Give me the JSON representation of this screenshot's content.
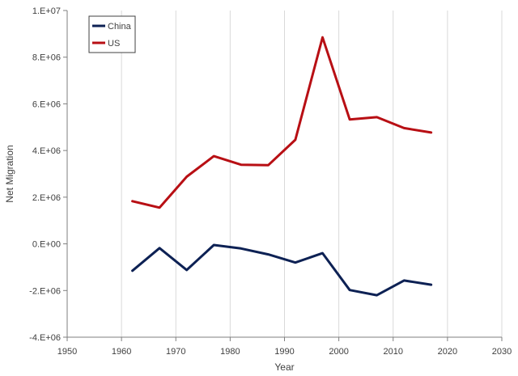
{
  "chart_data": {
    "type": "line",
    "title": "",
    "xlabel": "Year",
    "ylabel": "Net Migration",
    "xlim": [
      1950,
      2030
    ],
    "ylim": [
      -4000000,
      10000000
    ],
    "x_ticks": [
      1950,
      1960,
      1970,
      1980,
      1990,
      2000,
      2010,
      2020,
      2030
    ],
    "y_ticks": [
      -4000000,
      -2000000,
      0,
      2000000,
      4000000,
      6000000,
      8000000,
      10000000
    ],
    "y_tick_labels": [
      "-4.E+06",
      "-2.E+06",
      "0.E+00",
      "2.E+06",
      "4.E+06",
      "6.E+06",
      "8.E+06",
      "1.E+07"
    ],
    "grid": "vertical",
    "legend_position": "top-left",
    "x": [
      1962,
      1967,
      1972,
      1977,
      1982,
      1987,
      1992,
      1997,
      2002,
      2007,
      2012,
      2017
    ],
    "series": [
      {
        "name": "China",
        "color": "#0d2154",
        "values": [
          -1150000,
          -180000,
          -1120000,
          -50000,
          -200000,
          -450000,
          -800000,
          -400000,
          -1980000,
          -2200000,
          -1570000,
          -1750000
        ]
      },
      {
        "name": "US",
        "color": "#b80f14",
        "values": [
          1830000,
          1550000,
          2880000,
          3760000,
          3390000,
          3370000,
          4460000,
          8850000,
          5330000,
          5430000,
          4960000,
          4770000
        ]
      }
    ]
  }
}
